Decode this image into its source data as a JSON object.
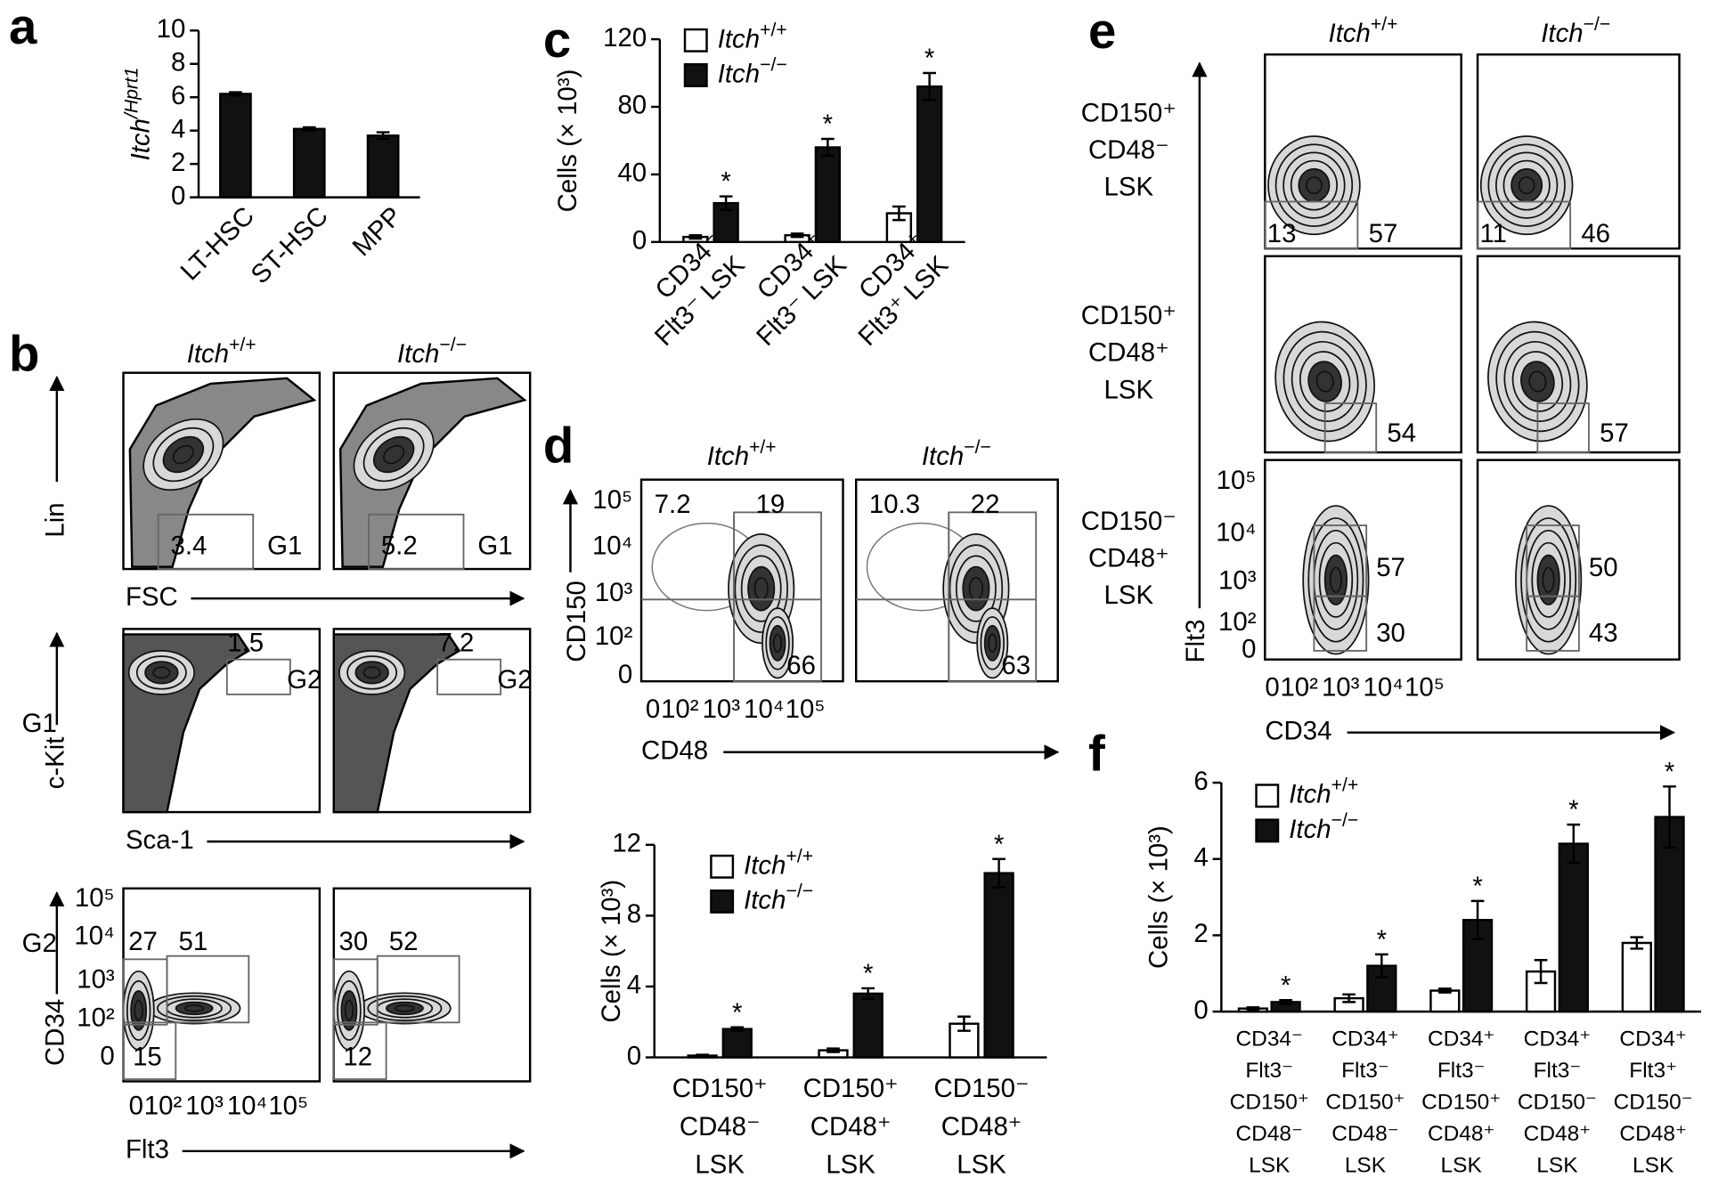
{
  "panel_labels": [
    "a",
    "b",
    "c",
    "d",
    "e",
    "f"
  ],
  "chart_data": [
    {
      "type": "bar",
      "ylabel": "Itch/Hprt1",
      "categories": [
        "LT-HSC",
        "ST-HSC",
        "MPP"
      ],
      "values": [
        6.2,
        4.1,
        3.7
      ],
      "errors": [
        0.1,
        0.1,
        0.2
      ],
      "color": "#111111",
      "ylim": [
        0,
        10
      ],
      "yticks": [
        0,
        2,
        4,
        6,
        8,
        10
      ]
    },
    {
      "type": "bar",
      "ylabel": "Cells (× 10³)",
      "categories": [
        [
          "CD34⁻",
          "Flt3⁻ LSK"
        ],
        [
          "CD34⁺",
          "Flt3⁻ LSK"
        ],
        [
          "CD34⁺",
          "Flt3⁺ LSK"
        ]
      ],
      "series": [
        {
          "name": "Itch+/+",
          "color": "#ffffff",
          "values": [
            3,
            4,
            17
          ],
          "errors": [
            1,
            1,
            4
          ]
        },
        {
          "name": "Itch−/−",
          "color": "#111111",
          "values": [
            23,
            56,
            92
          ],
          "errors": [
            4,
            5,
            8
          ]
        }
      ],
      "significance": [
        "*",
        "*",
        "*"
      ],
      "ylim": [
        0,
        120
      ],
      "yticks": [
        0,
        40,
        80,
        120
      ]
    },
    {
      "type": "bar",
      "ylabel": "Cells (× 10³)",
      "categories": [
        [
          "CD150⁺",
          "CD48⁻",
          "LSK"
        ],
        [
          "CD150⁺",
          "CD48⁺",
          "LSK"
        ],
        [
          "CD150⁻",
          "CD48⁺",
          "LSK"
        ]
      ],
      "series": [
        {
          "name": "Itch+/+",
          "color": "#ffffff",
          "values": [
            0.1,
            0.4,
            1.9
          ],
          "errors": [
            0.05,
            0.1,
            0.4
          ]
        },
        {
          "name": "Itch−/−",
          "color": "#111111",
          "values": [
            1.6,
            3.6,
            10.4
          ],
          "errors": [
            0.1,
            0.3,
            0.8
          ]
        }
      ],
      "significance": [
        "*",
        "*",
        "*"
      ],
      "ylim": [
        0,
        12
      ],
      "yticks": [
        0,
        4,
        8,
        12
      ]
    },
    {
      "type": "bar",
      "ylabel": "Cells (× 10³)",
      "categories": [
        [
          "CD34⁻",
          "Flt3⁻",
          "CD150⁺",
          "CD48⁻",
          "LSK"
        ],
        [
          "CD34⁺",
          "Flt3⁻",
          "CD150⁺",
          "CD48⁻",
          "LSK"
        ],
        [
          "CD34⁺",
          "Flt3⁻",
          "CD150⁺",
          "CD48⁺",
          "LSK"
        ],
        [
          "CD34⁺",
          "Flt3⁻",
          "CD150⁻",
          "CD48⁺",
          "LSK"
        ],
        [
          "CD34⁺",
          "Flt3⁺",
          "CD150⁻",
          "CD48⁺",
          "LSK"
        ]
      ],
      "series": [
        {
          "name": "Itch+/+",
          "color": "#ffffff",
          "values": [
            0.08,
            0.35,
            0.55,
            1.05,
            1.8
          ],
          "errors": [
            0.03,
            0.1,
            0.05,
            0.3,
            0.15
          ]
        },
        {
          "name": "Itch−/−",
          "color": "#111111",
          "values": [
            0.25,
            1.2,
            2.4,
            4.4,
            5.1
          ],
          "errors": [
            0.05,
            0.3,
            0.5,
            0.5,
            0.8
          ]
        }
      ],
      "significance": [
        "*",
        "*",
        "*",
        "*",
        "*"
      ],
      "ylim": [
        0,
        6
      ],
      "yticks": [
        0,
        2,
        4,
        6
      ]
    }
  ],
  "flow_plots": {
    "b": {
      "columns": [
        "Itch+/+",
        "Itch−/−"
      ],
      "rows": [
        {
          "y_label": "Lin",
          "x_label": "FSC",
          "plots": [
            [
              3.4,
              "G1"
            ],
            [
              5.2,
              "G1"
            ]
          ]
        },
        {
          "gate": "G1",
          "y_label": "c-Kit",
          "x_label": "Sca-1",
          "plots": [
            [
              1.5,
              "G2"
            ],
            [
              7.2,
              "G2"
            ]
          ]
        },
        {
          "gate": "G2",
          "y_label": "CD34",
          "x_label": "Flt3",
          "yticks": [
            "10⁵",
            "10⁴",
            "10³",
            "10²",
            "0"
          ],
          "xticks": [
            "0",
            "10²",
            "10³",
            "10⁴",
            "10⁵"
          ],
          "plots": [
            [
              27,
              51,
              15
            ],
            [
              30,
              52,
              12
            ]
          ]
        }
      ]
    },
    "d": {
      "columns": [
        "Itch+/+",
        "Itch−/−"
      ],
      "y_label": "CD150",
      "x_label": "CD48",
      "yticks": [
        "10⁵",
        "10⁴",
        "10³",
        "10²",
        "0"
      ],
      "xticks": [
        "0",
        "10²",
        "10³",
        "10⁴",
        "10⁵"
      ],
      "plots": [
        [
          7.2,
          19,
          66
        ],
        [
          10.3,
          22,
          63
        ]
      ]
    },
    "e": {
      "columns": [
        "Itch+/+",
        "Itch−/−"
      ],
      "y_label": "Flt3",
      "x_label": "CD34",
      "yticks": [
        "10⁵",
        "10⁴",
        "10³",
        "10²",
        "0"
      ],
      "xticks": [
        "0",
        "10²",
        "10³",
        "10⁴",
        "10⁵"
      ],
      "rows": [
        {
          "label": [
            "CD150⁺",
            "CD48⁻",
            "LSK"
          ],
          "plots": [
            [
              13,
              57
            ],
            [
              11,
              46
            ]
          ]
        },
        {
          "label": [
            "CD150⁺",
            "CD48⁺",
            "LSK"
          ],
          "plots": [
            [
              54
            ],
            [
              57
            ]
          ]
        },
        {
          "label": [
            "CD150⁻",
            "CD48⁺",
            "LSK"
          ],
          "plots": [
            [
              57,
              30
            ],
            [
              50,
              43
            ]
          ]
        }
      ]
    }
  }
}
